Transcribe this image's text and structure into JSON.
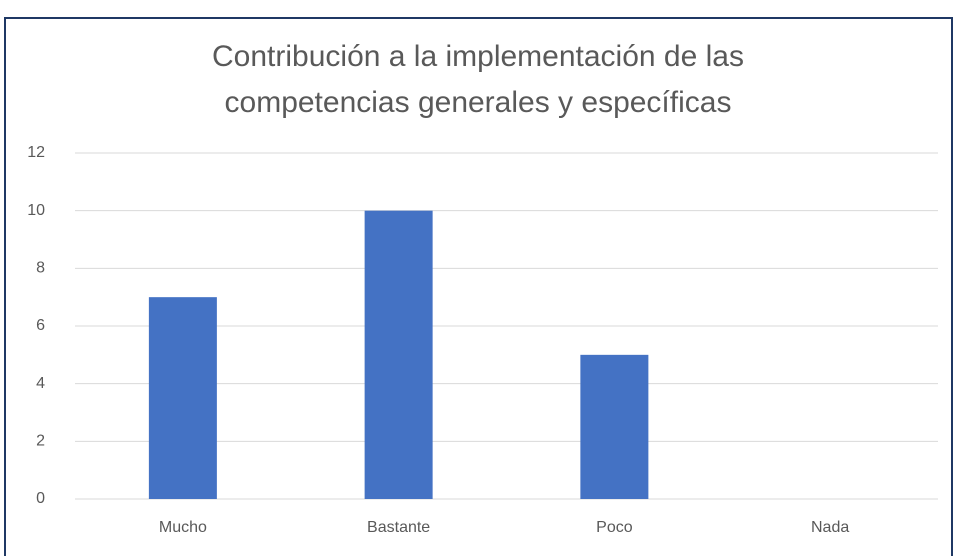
{
  "chart_data": {
    "type": "bar",
    "title": [
      "Contribución a la implementación de las",
      "competencias generales y específicas"
    ],
    "categories": [
      "Mucho",
      "Bastante",
      "Poco",
      "Nada"
    ],
    "values": [
      7,
      10,
      5,
      0
    ],
    "color": "#4472c4",
    "ylim": [
      0,
      12
    ],
    "yticks": [
      0,
      2,
      4,
      6,
      8,
      10,
      12
    ],
    "grid": true
  }
}
